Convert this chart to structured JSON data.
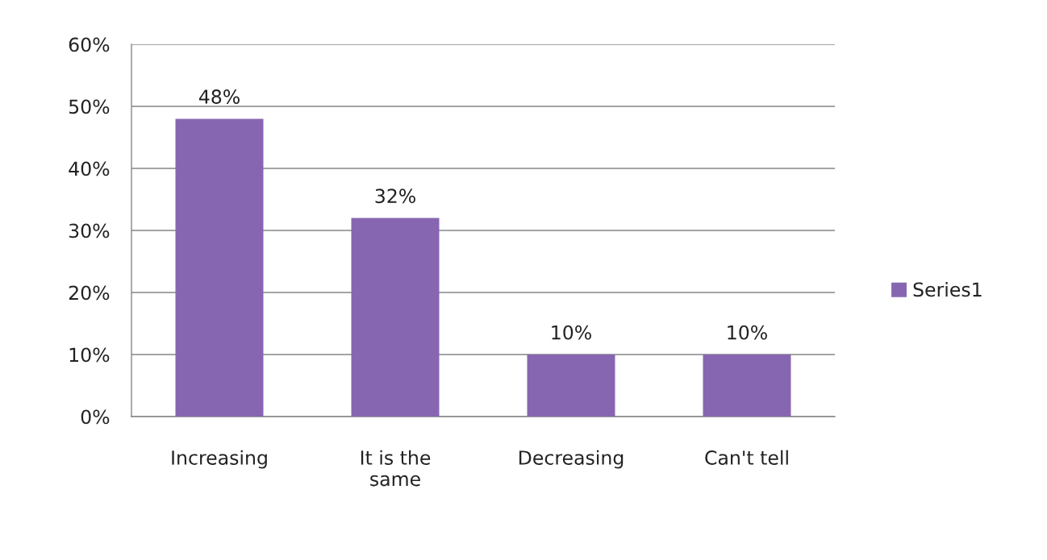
{
  "chart_data": {
    "type": "bar",
    "categories": [
      "Increasing",
      "It is the\nsame",
      "Decreasing",
      "Can't tell"
    ],
    "series": [
      {
        "name": "Series1",
        "color": "#8766b1",
        "values": [
          48,
          32,
          10,
          10
        ],
        "value_labels": [
          "48%",
          "32%",
          "10%",
          "10%"
        ]
      }
    ],
    "ylim": [
      0,
      60
    ],
    "yticks": [
      {
        "value": 0,
        "label": "0%"
      },
      {
        "value": 10,
        "label": "10%"
      },
      {
        "value": 20,
        "label": "20%"
      },
      {
        "value": 30,
        "label": "30%"
      },
      {
        "value": 40,
        "label": "40%"
      },
      {
        "value": 50,
        "label": "50%"
      },
      {
        "value": 60,
        "label": "60%"
      }
    ],
    "grid": "y",
    "legend": "right"
  }
}
